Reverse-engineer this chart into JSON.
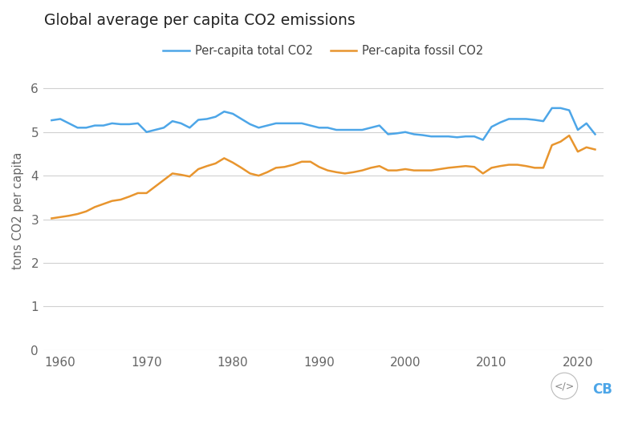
{
  "title": "Global average per capita CO2 emissions",
  "ylabel": "tons CO2 per capita",
  "legend_labels": [
    "Per-capita total CO2",
    "Per-capita fossil CO2"
  ],
  "line_colors": [
    "#4da6e8",
    "#e8952e"
  ],
  "background_color": "#ffffff",
  "grid_color": "#d0d0d0",
  "xlim": [
    1958,
    2023
  ],
  "ylim": [
    0,
    6.4
  ],
  "yticks": [
    0,
    1,
    2,
    3,
    4,
    5,
    6
  ],
  "xticks": [
    1960,
    1970,
    1980,
    1990,
    2000,
    2010,
    2020
  ],
  "total_co2_years": [
    1959,
    1960,
    1961,
    1962,
    1963,
    1964,
    1965,
    1966,
    1967,
    1968,
    1969,
    1970,
    1971,
    1972,
    1973,
    1974,
    1975,
    1976,
    1977,
    1978,
    1979,
    1980,
    1981,
    1982,
    1983,
    1984,
    1985,
    1986,
    1987,
    1988,
    1989,
    1990,
    1991,
    1992,
    1993,
    1994,
    1995,
    1996,
    1997,
    1998,
    1999,
    2000,
    2001,
    2002,
    2003,
    2004,
    2005,
    2006,
    2007,
    2008,
    2009,
    2010,
    2011,
    2012,
    2013,
    2014,
    2015,
    2016,
    2017,
    2018,
    2019,
    2020,
    2021,
    2022
  ],
  "total_co2_values": [
    5.27,
    5.3,
    5.2,
    5.1,
    5.1,
    5.15,
    5.15,
    5.2,
    5.18,
    5.18,
    5.2,
    5.0,
    5.05,
    5.1,
    5.25,
    5.2,
    5.1,
    5.28,
    5.3,
    5.35,
    5.47,
    5.42,
    5.3,
    5.18,
    5.1,
    5.15,
    5.2,
    5.2,
    5.2,
    5.2,
    5.15,
    5.1,
    5.1,
    5.05,
    5.05,
    5.05,
    5.05,
    5.1,
    5.15,
    4.95,
    4.97,
    5.0,
    4.95,
    4.93,
    4.9,
    4.9,
    4.9,
    4.88,
    4.9,
    4.9,
    4.82,
    5.12,
    5.22,
    5.3,
    5.3,
    5.3,
    5.28,
    5.25,
    5.55,
    5.55,
    5.5,
    5.05,
    5.2,
    4.95
  ],
  "fossil_co2_years": [
    1959,
    1960,
    1961,
    1962,
    1963,
    1964,
    1965,
    1966,
    1967,
    1968,
    1969,
    1970,
    1971,
    1972,
    1973,
    1974,
    1975,
    1976,
    1977,
    1978,
    1979,
    1980,
    1981,
    1982,
    1983,
    1984,
    1985,
    1986,
    1987,
    1988,
    1989,
    1990,
    1991,
    1992,
    1993,
    1994,
    1995,
    1996,
    1997,
    1998,
    1999,
    2000,
    2001,
    2002,
    2003,
    2004,
    2005,
    2006,
    2007,
    2008,
    2009,
    2010,
    2011,
    2012,
    2013,
    2014,
    2015,
    2016,
    2017,
    2018,
    2019,
    2020,
    2021,
    2022
  ],
  "fossil_co2_values": [
    3.02,
    3.05,
    3.08,
    3.12,
    3.18,
    3.28,
    3.35,
    3.42,
    3.45,
    3.52,
    3.6,
    3.6,
    3.75,
    3.9,
    4.05,
    4.02,
    3.98,
    4.15,
    4.22,
    4.28,
    4.4,
    4.3,
    4.18,
    4.05,
    4.0,
    4.08,
    4.18,
    4.2,
    4.25,
    4.32,
    4.32,
    4.2,
    4.12,
    4.08,
    4.05,
    4.08,
    4.12,
    4.18,
    4.22,
    4.12,
    4.12,
    4.15,
    4.12,
    4.12,
    4.12,
    4.15,
    4.18,
    4.2,
    4.22,
    4.2,
    4.05,
    4.18,
    4.22,
    4.25,
    4.25,
    4.22,
    4.18,
    4.18,
    4.7,
    4.78,
    4.92,
    4.55,
    4.65,
    4.6
  ]
}
